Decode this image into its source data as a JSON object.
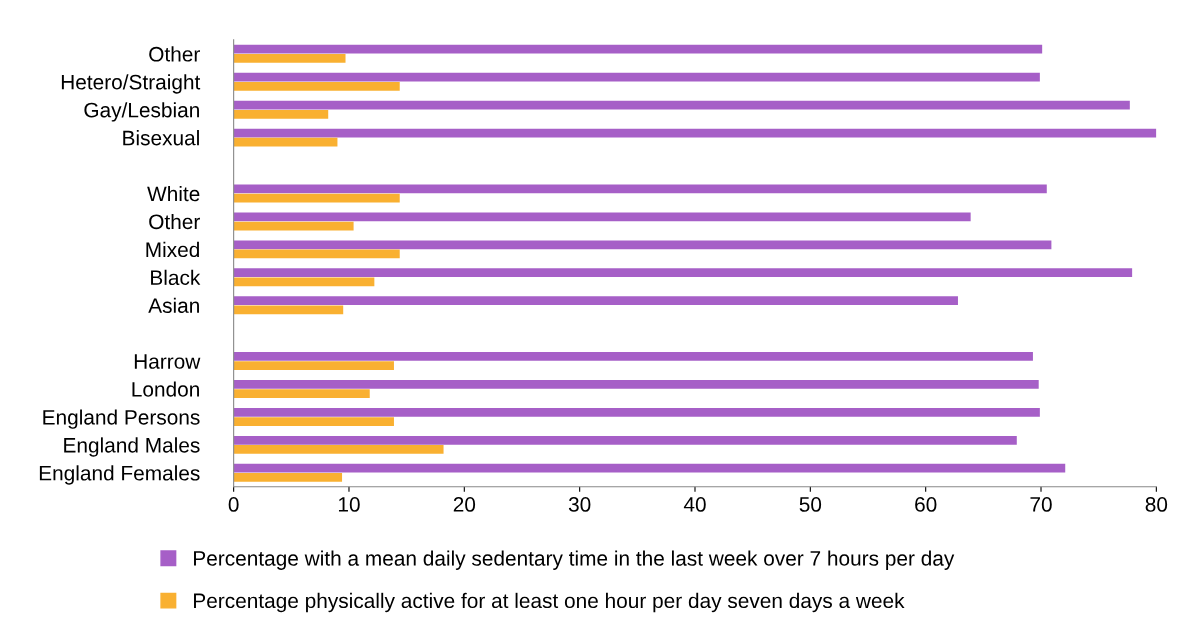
{
  "chart_data": {
    "type": "bar",
    "orientation": "horizontal",
    "categories": [
      "Other",
      "Hetero/Straight",
      "Gay/Lesbian",
      "Bisexual",
      null,
      "White",
      "Other",
      "Mixed",
      "Black",
      "Asian",
      null,
      "Harrow",
      "London",
      "England Persons",
      "England Males",
      "England Females"
    ],
    "series": [
      {
        "name": "Percentage with a mean daily sedentary time in the last week over 7 hours per day",
        "color": "#a65fc7",
        "values": [
          70.1,
          69.9,
          77.7,
          80,
          null,
          70.5,
          63.9,
          70.9,
          77.9,
          62.8,
          null,
          69.3,
          69.8,
          69.9,
          67.9,
          72.1
        ]
      },
      {
        "name": "Percentage physically active for at least one hour per day seven days a week",
        "color": "#f9b031",
        "values": [
          9.7,
          14.4,
          8.2,
          9.0,
          null,
          14.4,
          10.4,
          14.4,
          12.2,
          9.5,
          null,
          13.9,
          11.8,
          13.9,
          18.2,
          9.4
        ]
      }
    ],
    "xlim": [
      0,
      80
    ],
    "xticks": [
      0,
      10,
      20,
      30,
      40,
      50,
      60,
      70,
      80
    ],
    "grid": false,
    "legend": "bottom"
  }
}
